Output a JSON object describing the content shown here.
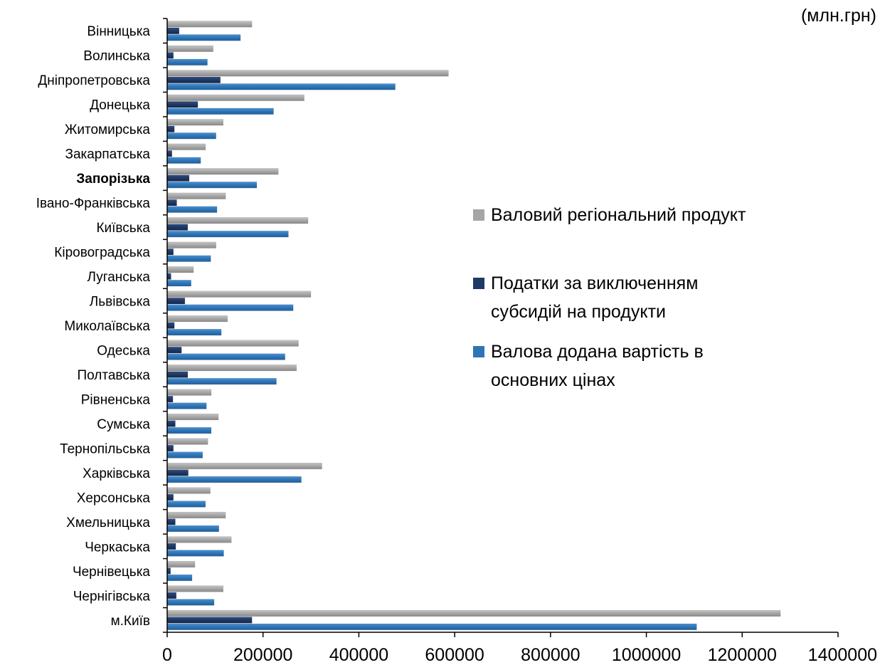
{
  "chart_data": {
    "type": "bar",
    "orientation": "horizontal",
    "unit": "(млн.грн)",
    "categories": [
      "Вінницька",
      "Волинська",
      "Дніпропетровська",
      "Донецька",
      "Житомирська",
      "Закарпатська",
      "Запорізька",
      "Івано-Франківська",
      "Київська",
      "Кіровоградська",
      "Луганська",
      "Львівська",
      "Миколаївська",
      "Одеська",
      "Полтавська",
      "Рівненська",
      "Сумська",
      "Тернопільська",
      "Харківська",
      "Херсонська",
      "Хмельницька",
      "Черкаська",
      "Чернівецька",
      "Чернігівська",
      "м.Київ"
    ],
    "highlighted_category": "Запорізька",
    "series": [
      {
        "name": "Валовий регіональний продукт",
        "color": "#a6a6a6",
        "values": [
          177000,
          96000,
          587000,
          286000,
          117000,
          80000,
          232000,
          122000,
          294000,
          102000,
          55000,
          300000,
          126000,
          274000,
          270000,
          92000,
          107000,
          85000,
          323000,
          90000,
          122000,
          134000,
          58000,
          117000,
          1280000
        ]
      },
      {
        "name": "Податки за виключенням субсидій на продукти",
        "color": "#1f3864",
        "values": [
          25000,
          13000,
          111000,
          64000,
          15000,
          10000,
          46000,
          20000,
          43000,
          13000,
          8000,
          37000,
          15000,
          30000,
          43000,
          12000,
          17000,
          13000,
          44000,
          13000,
          17000,
          18000,
          7000,
          19000,
          177000
        ]
      },
      {
        "name": "Валова додана вартість в основних цінах",
        "color": "#2e75b6",
        "values": [
          153000,
          84000,
          476000,
          222000,
          102000,
          70000,
          187000,
          104000,
          253000,
          91000,
          50000,
          263000,
          113000,
          246000,
          228000,
          82000,
          92000,
          74000,
          280000,
          80000,
          108000,
          118000,
          52000,
          98000,
          1105000
        ]
      }
    ],
    "xlim": [
      0,
      1400000
    ],
    "x_ticks": [
      "0",
      "200000",
      "400000",
      "600000",
      "800000",
      "1000000",
      "1200000",
      "1400000"
    ],
    "legend_position": "right",
    "grid": false
  },
  "legend": {
    "line1": "Валовий регіональний продукт",
    "line2a": "Податки за виключенням",
    "line2b": "субсидій на продукти",
    "line3a": "Валова додана вартість в",
    "line3b": "основних цінах"
  }
}
